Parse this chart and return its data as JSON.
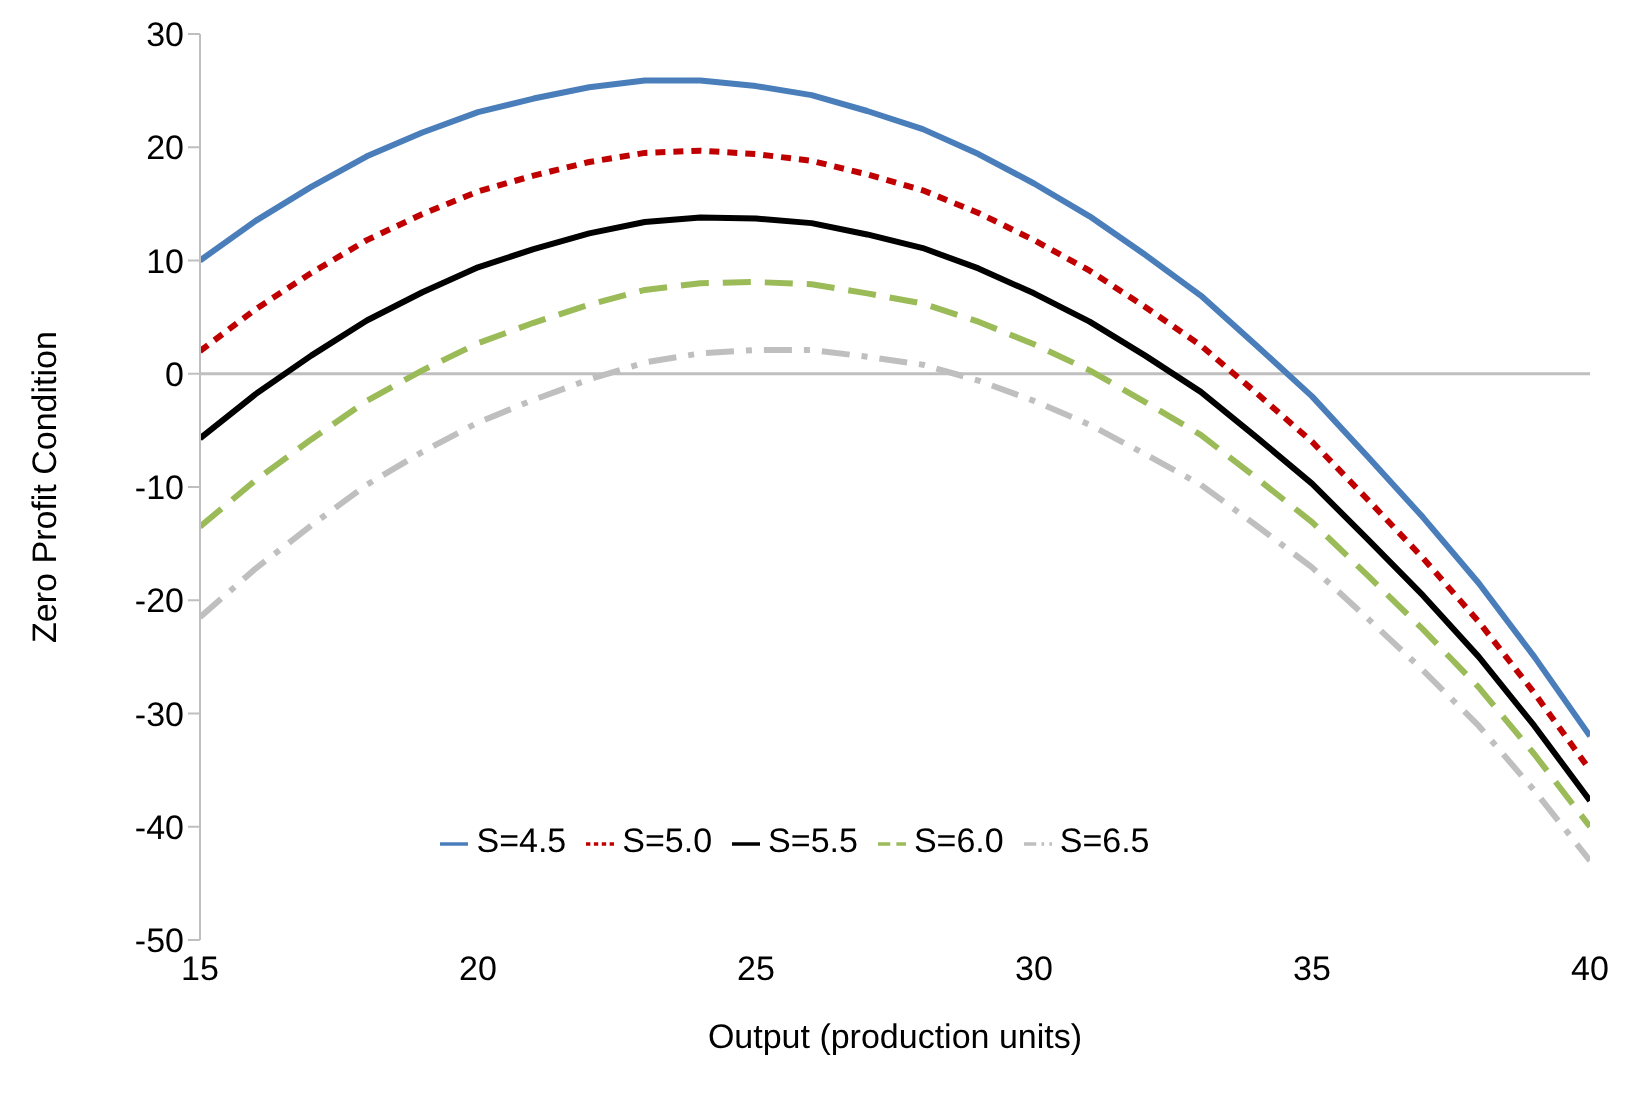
{
  "chart_data": {
    "type": "line",
    "xlabel": "Output (production units)",
    "ylabel": "Zero Profit Condition",
    "x": [
      15,
      16,
      17,
      18,
      19,
      20,
      21,
      22,
      23,
      24,
      25,
      26,
      27,
      28,
      29,
      30,
      31,
      32,
      33,
      34,
      35,
      36,
      37,
      38,
      39,
      40
    ],
    "xlim": [
      15,
      40
    ],
    "xticks": [
      15,
      20,
      25,
      30,
      35,
      40
    ],
    "ylim": [
      -50,
      30
    ],
    "yticks": [
      -50,
      -40,
      -30,
      -20,
      -10,
      0,
      10,
      20,
      30
    ],
    "grid": false,
    "legend": "bottom",
    "marker": "none",
    "ref_lines": [
      {
        "axis": "y",
        "value": 0,
        "color": "#bfbfbf"
      }
    ],
    "series": [
      {
        "name": "S=4.5",
        "color": "#4a7ebb",
        "line_style": "solid",
        "values": [
          10,
          13.5,
          16.5,
          19.2,
          21.3,
          23.1,
          24.3,
          25.3,
          25.9,
          25.9,
          25.4,
          24.6,
          23.2,
          21.6,
          19.4,
          16.8,
          13.9,
          10.5,
          6.9,
          2.5,
          -2,
          -7.3,
          -12.7,
          -18.5,
          -25,
          -32
        ]
      },
      {
        "name": "S=5.0",
        "color": "#c00000",
        "line_style": "dotted",
        "values": [
          2,
          5.7,
          8.9,
          11.8,
          14.1,
          16.1,
          17.5,
          18.7,
          19.5,
          19.7,
          19.4,
          18.8,
          17.6,
          16.2,
          14.2,
          11.8,
          9.1,
          5.9,
          2.5,
          -1.7,
          -6,
          -11.1,
          -16.3,
          -21.9,
          -28.2,
          -35
        ]
      },
      {
        "name": "S=5.5",
        "color": "#000000",
        "line_style": "solid",
        "values": [
          -5.7,
          -1.8,
          1.6,
          4.7,
          7.2,
          9.4,
          11,
          12.4,
          13.4,
          13.8,
          13.7,
          13.3,
          12.3,
          11.1,
          9.3,
          7.1,
          4.6,
          1.6,
          -1.6,
          -5.6,
          -9.7,
          -14.6,
          -19.6,
          -25,
          -31.1,
          -37.7
        ]
      },
      {
        "name": "S=6.0",
        "color": "#9bbb59",
        "line_style": "dashed",
        "values": [
          -13.5,
          -9.4,
          -5.8,
          -2.4,
          0.3,
          2.7,
          4.5,
          6.1,
          7.4,
          8,
          8.1,
          7.9,
          7.1,
          6.2,
          4.6,
          2.6,
          0.3,
          -2.5,
          -5.4,
          -9.2,
          -13.1,
          -17.8,
          -22.6,
          -27.7,
          -33.6,
          -40
        ]
      },
      {
        "name": "S=6.5",
        "color": "#bfbfbf",
        "line_style": "dashdot",
        "values": [
          -21.5,
          -17.2,
          -13.4,
          -9.8,
          -6.9,
          -4.3,
          -2.3,
          -0.5,
          1,
          1.8,
          2.1,
          2.1,
          1.5,
          0.8,
          -0.6,
          -2.4,
          -4.5,
          -7.1,
          -9.8,
          -13.4,
          -17.1,
          -21.6,
          -26.2,
          -31.1,
          -36.8,
          -43
        ]
      }
    ]
  }
}
